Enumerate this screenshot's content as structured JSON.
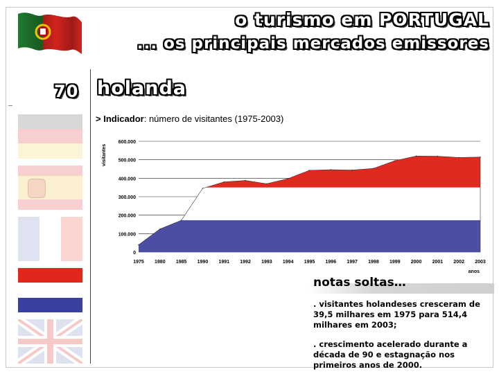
{
  "header": {
    "title": "o turismo em PORTUGAL",
    "subtitle": "... os principais mercados emissores"
  },
  "slide": {
    "number": "70",
    "country": "holanda"
  },
  "indicator": {
    "prefix": "> Indicador",
    "text": ": número de visitantes (1975-2003)"
  },
  "chart_data": {
    "type": "area",
    "title": "",
    "xlabel": "anos",
    "ylabel": "visitantes",
    "ylim": [
      0,
      600000
    ],
    "y_ticks": [
      0,
      100000,
      200000,
      300000,
      400000,
      500000,
      600000
    ],
    "y_tick_labels": [
      "0",
      "100.000",
      "200.000",
      "300.000",
      "400.000",
      "500.000",
      "600.000"
    ],
    "x": [
      "1975",
      "1980",
      "1985",
      "1990",
      "1991",
      "1992",
      "1993",
      "1994",
      "1995",
      "1996",
      "1997",
      "1998",
      "1999",
      "2000",
      "2001",
      "2002",
      "2003"
    ],
    "series": [
      {
        "values": [
          39500,
          125000,
          172000,
          345000,
          380000,
          388000,
          370000,
          398000,
          443000,
          446000,
          444000,
          453000,
          495000,
          520000,
          519000,
          512000,
          514400
        ]
      }
    ],
    "fill_bands": [
      "#4b4ea3",
      "#ffffff",
      "#e0291f"
    ],
    "grid": true,
    "legend": "none"
  },
  "notes": {
    "title": "notas soltas…",
    "items": [
      ". visitantes holandeses cresceram de 39,5 milhares em 1975 para 514,4 milhares em 2003;",
      ". crescimento acelerado durante a década de 90 e estagnação nos primeiros anos de 2000."
    ]
  },
  "flags": [
    "portugal-flag",
    "germany-flag",
    "spain-flag",
    "france-flag",
    "netherlands-flag",
    "uk-flag"
  ]
}
